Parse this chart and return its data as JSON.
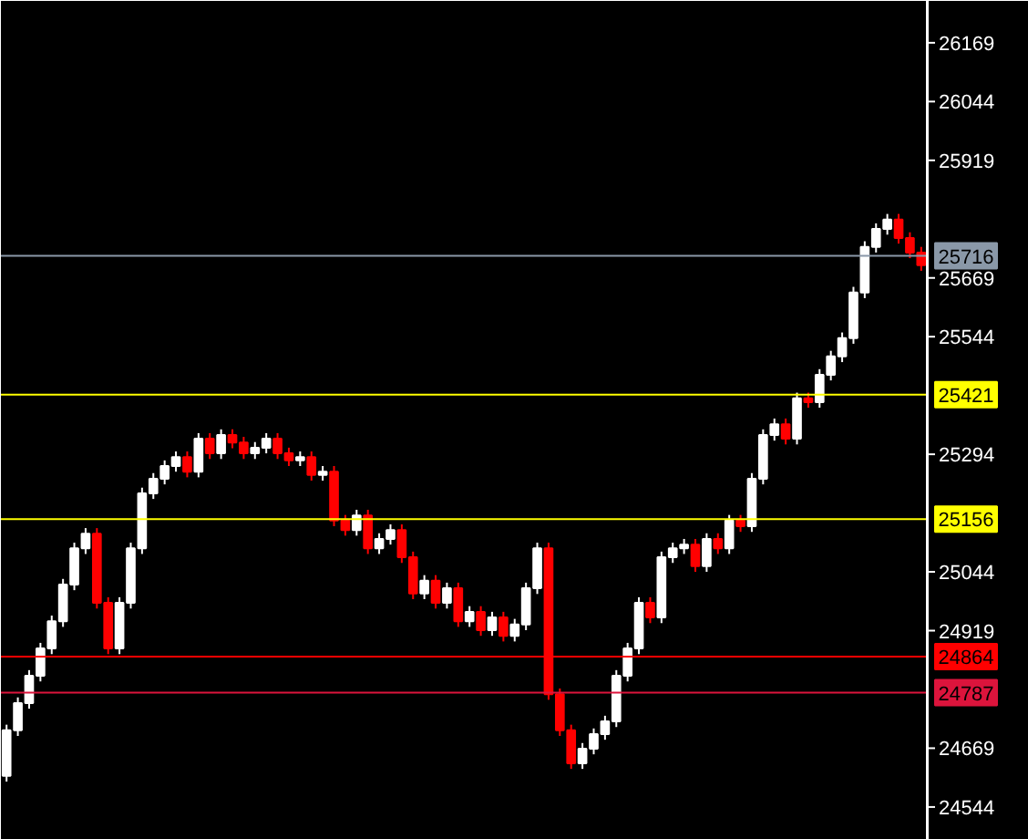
{
  "chart_data": {
    "type": "candlestick",
    "tick_labels": "y",
    "categories": [
      null,
      null,
      null,
      null,
      null,
      null,
      null,
      null,
      null,
      null,
      null,
      null,
      null,
      null,
      null,
      null,
      null,
      null,
      null,
      null,
      null,
      null,
      null,
      null,
      null,
      null,
      null,
      null,
      null,
      null,
      null,
      null,
      null,
      null,
      null,
      null,
      null,
      null,
      null,
      null,
      null,
      null,
      null,
      null,
      null,
      null,
      null,
      null,
      null,
      null,
      null,
      null,
      null,
      null,
      null,
      null,
      null,
      null,
      null,
      null,
      null,
      null,
      null,
      null,
      null,
      null,
      null,
      null,
      null,
      null,
      null,
      null,
      null,
      null,
      null,
      null,
      null,
      null,
      null,
      null,
      null,
      null
    ],
    "ylim": [
      24474,
      26258
    ],
    "yticks": [
      24544,
      24669,
      24919,
      25044,
      25294,
      25544,
      25669,
      25919,
      26044,
      26169
    ],
    "ohlc": [
      [
        24610,
        24719,
        24598,
        24707
      ],
      [
        24707,
        24777,
        24695,
        24765
      ],
      [
        24765,
        24835,
        24753,
        24823
      ],
      [
        24823,
        24893,
        24811,
        24881
      ],
      [
        24881,
        24951,
        24869,
        24939
      ],
      [
        24939,
        25029,
        24927,
        25017
      ],
      [
        25017,
        25106,
        25005,
        25094
      ],
      [
        25094,
        25137,
        25082,
        25125
      ],
      [
        25125,
        25137,
        24966,
        24978
      ],
      [
        24978,
        24990,
        24869,
        24881
      ],
      [
        24881,
        24990,
        24869,
        24978
      ],
      [
        24978,
        25106,
        24966,
        25094
      ],
      [
        25094,
        25223,
        25082,
        25211
      ],
      [
        25211,
        25254,
        25199,
        25242
      ],
      [
        25242,
        25281,
        25230,
        25269
      ],
      [
        25269,
        25300,
        25257,
        25288
      ],
      [
        25288,
        25300,
        25245,
        25257
      ],
      [
        25257,
        25339,
        25245,
        25327
      ],
      [
        25327,
        25339,
        25284,
        25296
      ],
      [
        25296,
        25347,
        25284,
        25335
      ],
      [
        25335,
        25347,
        25307,
        25319
      ],
      [
        25319,
        25331,
        25284,
        25296
      ],
      [
        25296,
        25320,
        25284,
        25308
      ],
      [
        25308,
        25339,
        25296,
        25327
      ],
      [
        25327,
        25339,
        25284,
        25296
      ],
      [
        25296,
        25308,
        25269,
        25281
      ],
      [
        25281,
        25300,
        25269,
        25288
      ],
      [
        25288,
        25300,
        25238,
        25250
      ],
      [
        25250,
        25269,
        25238,
        25257
      ],
      [
        25257,
        25269,
        25141,
        25153
      ],
      [
        25153,
        25165,
        25121,
        25133
      ],
      [
        25133,
        25176,
        25121,
        25164
      ],
      [
        25164,
        25176,
        25082,
        25094
      ],
      [
        25094,
        25126,
        25082,
        25114
      ],
      [
        25114,
        25145,
        25102,
        25133
      ],
      [
        25133,
        25145,
        25063,
        25075
      ],
      [
        25075,
        25087,
        24986,
        24998
      ],
      [
        24998,
        25037,
        24986,
        25025
      ],
      [
        25025,
        25037,
        24966,
        24978
      ],
      [
        24978,
        25021,
        24966,
        25009
      ],
      [
        25009,
        25021,
        24927,
        24939
      ],
      [
        24939,
        24971,
        24927,
        24959
      ],
      [
        24959,
        24971,
        24908,
        24920
      ],
      [
        24920,
        24959,
        24908,
        24947
      ],
      [
        24947,
        24959,
        24896,
        24908
      ],
      [
        24908,
        24944,
        24896,
        24932
      ],
      [
        24932,
        25021,
        24920,
        25009
      ],
      [
        25009,
        25106,
        24997,
        25094
      ],
      [
        25094,
        25106,
        24772,
        24784
      ],
      [
        24784,
        24796,
        24695,
        24707
      ],
      [
        24707,
        24719,
        24625,
        24637
      ],
      [
        24637,
        24680,
        24625,
        24668
      ],
      [
        24668,
        24711,
        24656,
        24699
      ],
      [
        24699,
        24738,
        24687,
        24726
      ],
      [
        24726,
        24835,
        24714,
        24823
      ],
      [
        24823,
        24893,
        24811,
        24881
      ],
      [
        24881,
        24990,
        24869,
        24978
      ],
      [
        24978,
        24990,
        24935,
        24947
      ],
      [
        24947,
        25087,
        24935,
        25075
      ],
      [
        25075,
        25106,
        25063,
        25094
      ],
      [
        25094,
        25114,
        25082,
        25102
      ],
      [
        25102,
        25114,
        25044,
        25056
      ],
      [
        25056,
        25126,
        25044,
        25114
      ],
      [
        25114,
        25126,
        25082,
        25094
      ],
      [
        25094,
        25165,
        25082,
        25153
      ],
      [
        25153,
        25165,
        25129,
        25141
      ],
      [
        25141,
        25254,
        25129,
        25242
      ],
      [
        25242,
        25347,
        25230,
        25335
      ],
      [
        25335,
        25370,
        25323,
        25358
      ],
      [
        25358,
        25370,
        25315,
        25327
      ],
      [
        25327,
        25425,
        25315,
        25413
      ],
      [
        25413,
        25425,
        25393,
        25405
      ],
      [
        25405,
        25475,
        25393,
        25463
      ],
      [
        25463,
        25514,
        25451,
        25502
      ],
      [
        25502,
        25553,
        25490,
        25541
      ],
      [
        25541,
        25650,
        25529,
        25638
      ],
      [
        25638,
        25747,
        25626,
        25735
      ],
      [
        25735,
        25785,
        25723,
        25773
      ],
      [
        25773,
        25805,
        25761,
        25793
      ],
      [
        25793,
        25805,
        25742,
        25754
      ],
      [
        25754,
        25766,
        25711,
        25723
      ],
      [
        25723,
        25735,
        25684,
        25696
      ]
    ],
    "ref_lines": [
      {
        "axis": "y",
        "value": 25716,
        "label": "25716",
        "color": "#8a98a8"
      },
      {
        "axis": "y",
        "value": 25421,
        "label": "25421",
        "color": "#ffff00"
      },
      {
        "axis": "y",
        "value": 25156,
        "label": "25156",
        "color": "#ffff00"
      },
      {
        "axis": "y",
        "value": 24864,
        "label": "24864",
        "color": "#ff0000"
      },
      {
        "axis": "y",
        "value": 24787,
        "label": "24787",
        "color": "#dc143c"
      }
    ]
  }
}
